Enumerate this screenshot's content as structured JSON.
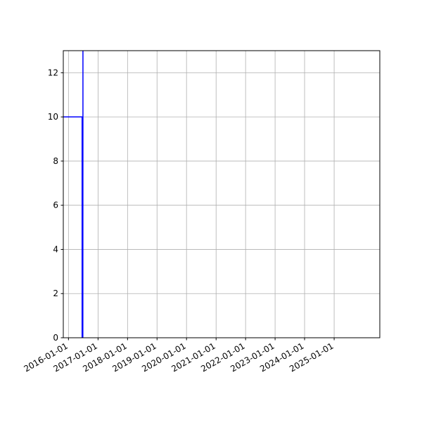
{
  "chart_data": {
    "type": "line",
    "title": "",
    "xlabel": "",
    "ylabel": "",
    "x_axis_type": "date",
    "xlim": [
      "2015-10-29",
      "2026-07-20"
    ],
    "ylim": [
      0,
      13
    ],
    "grid": true,
    "line_color": "#0000ff",
    "x_ticks": [
      "2016-01-01",
      "2017-01-01",
      "2018-01-01",
      "2019-01-01",
      "2020-01-01",
      "2021-01-01",
      "2022-01-01",
      "2023-01-01",
      "2024-01-01",
      "2025-01-01"
    ],
    "y_ticks": [
      0,
      2,
      4,
      6,
      8,
      10,
      12
    ],
    "series": [
      {
        "x": [
          "2015-10-29",
          "2016-06-20",
          "2016-06-20",
          "2016-06-21",
          "2016-06-21",
          "2016-06-22",
          "2016-06-22",
          "2016-06-23",
          "2016-06-23",
          "2016-06-24",
          "2016-06-24",
          "2016-06-25",
          "2016-06-25",
          "2016-06-26",
          "2016-06-26",
          "2016-06-27",
          "2016-06-27",
          "2016-06-28",
          "2016-06-28"
        ],
        "y": [
          10,
          10,
          0,
          10,
          0,
          10,
          0,
          10,
          0,
          10,
          0,
          10,
          0,
          10,
          0,
          10,
          0,
          10,
          14
        ]
      }
    ]
  }
}
